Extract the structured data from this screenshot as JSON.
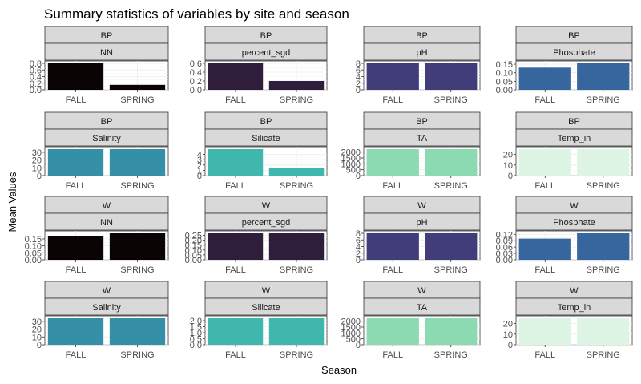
{
  "title": "Summary statistics of variables by site and season",
  "xlabel": "Season",
  "ylabel": "Mean Values",
  "chart_data": {
    "type": "bar",
    "title": "Summary statistics of variables by site and season",
    "xlabel": "Season",
    "ylabel": "Mean Values",
    "grid": true,
    "facet_rows": 4,
    "facet_cols": 4,
    "categories": [
      "FALL",
      "SPRING"
    ],
    "panels": [
      {
        "site": "BP",
        "variable": "NN",
        "values": [
          0.8,
          0.15
        ],
        "yticks": [
          0.0,
          0.2,
          0.4,
          0.6,
          0.8
        ],
        "tick_labels": [
          "0.0",
          "0.2",
          "0.4",
          "0.6",
          "0.8"
        ],
        "ylim": [
          0,
          0.8
        ],
        "color": "#0b0405"
      },
      {
        "site": "BP",
        "variable": "percent_sgd",
        "values": [
          0.6,
          0.2
        ],
        "yticks": [
          0.0,
          0.2,
          0.4,
          0.6
        ],
        "tick_labels": [
          "0.0",
          "0.2",
          "0.4",
          "0.6"
        ],
        "ylim": [
          0,
          0.6
        ],
        "color": "#2e1e3c"
      },
      {
        "site": "BP",
        "variable": "pH",
        "values": [
          8.0,
          8.0
        ],
        "yticks": [
          0,
          2,
          4,
          6,
          8
        ],
        "tick_labels": [
          "0",
          "2",
          "4",
          "6",
          "8"
        ],
        "ylim": [
          0,
          8
        ],
        "color": "#413d7b"
      },
      {
        "site": "BP",
        "variable": "Phosphate",
        "values": [
          0.13,
          0.155
        ],
        "yticks": [
          0.0,
          0.05,
          0.1,
          0.15
        ],
        "tick_labels": [
          "0.00",
          "0.05",
          "0.10",
          "0.15"
        ],
        "ylim": [
          0,
          0.155
        ],
        "color": "#37659e"
      },
      {
        "site": "BP",
        "variable": "Salinity",
        "values": [
          34,
          34
        ],
        "yticks": [
          0,
          10,
          20,
          30
        ],
        "tick_labels": [
          "0",
          "10",
          "20",
          "30"
        ],
        "ylim": [
          0,
          34
        ],
        "color": "#348fa7"
      },
      {
        "site": "BP",
        "variable": "Silicate",
        "values": [
          5.0,
          1.5
        ],
        "yticks": [
          0,
          1,
          2,
          3,
          4
        ],
        "tick_labels": [
          "0",
          "1",
          "2",
          "3",
          "4"
        ],
        "ylim": [
          0,
          5.0
        ],
        "color": "#40b7ad"
      },
      {
        "site": "BP",
        "variable": "TA",
        "values": [
          2250,
          2250
        ],
        "yticks": [
          0,
          500,
          1000,
          1500,
          2000
        ],
        "tick_labels": [
          "0",
          "500",
          "1000",
          "1500",
          "2000"
        ],
        "ylim": [
          0,
          2250
        ],
        "color": "#8bdab2"
      },
      {
        "site": "BP",
        "variable": "Temp_in",
        "values": [
          25,
          25
        ],
        "yticks": [
          0,
          10,
          20
        ],
        "tick_labels": [
          "0",
          "10",
          "20"
        ],
        "ylim": [
          0,
          25
        ],
        "color": "#def5e5"
      },
      {
        "site": "W",
        "variable": "NN",
        "values": [
          0.17,
          0.19
        ],
        "yticks": [
          0.0,
          0.05,
          0.1,
          0.15
        ],
        "tick_labels": [
          "0.00",
          "0.05",
          "0.10",
          "0.15"
        ],
        "ylim": [
          0,
          0.19
        ],
        "color": "#0b0405"
      },
      {
        "site": "W",
        "variable": "percent_sgd",
        "values": [
          0.27,
          0.27
        ],
        "yticks": [
          0.0,
          0.05,
          0.1,
          0.15,
          0.2,
          0.25
        ],
        "tick_labels": [
          "0.00",
          "0.05",
          "0.10",
          "0.15",
          "0.20",
          "0.25"
        ],
        "ylim": [
          0,
          0.27
        ],
        "color": "#2e1e3c"
      },
      {
        "site": "W",
        "variable": "pH",
        "values": [
          8.0,
          8.0
        ],
        "yticks": [
          0,
          2,
          4,
          6,
          8
        ],
        "tick_labels": [
          "0",
          "2",
          "4",
          "6",
          "8"
        ],
        "ylim": [
          0,
          8
        ],
        "color": "#413d7b"
      },
      {
        "site": "W",
        "variable": "Phosphate",
        "values": [
          0.1,
          0.125
        ],
        "yticks": [
          0.0,
          0.03,
          0.06,
          0.09,
          0.12
        ],
        "tick_labels": [
          "0.00",
          "0.03",
          "0.06",
          "0.09",
          "0.12"
        ],
        "ylim": [
          0,
          0.125
        ],
        "color": "#37659e"
      },
      {
        "site": "W",
        "variable": "Salinity",
        "values": [
          34,
          34
        ],
        "yticks": [
          0,
          10,
          20,
          30
        ],
        "tick_labels": [
          "0",
          "10",
          "20",
          "30"
        ],
        "ylim": [
          0,
          34
        ],
        "color": "#348fa7"
      },
      {
        "site": "W",
        "variable": "Silicate",
        "values": [
          2.2,
          2.2
        ],
        "yticks": [
          0.0,
          0.5,
          1.0,
          1.5,
          2.0
        ],
        "tick_labels": [
          "0.0",
          "0.5",
          "1.0",
          "1.5",
          "2.0"
        ],
        "ylim": [
          0,
          2.2
        ],
        "color": "#40b7ad"
      },
      {
        "site": "W",
        "variable": "TA",
        "values": [
          2250,
          2250
        ],
        "yticks": [
          0,
          500,
          1000,
          1500,
          2000
        ],
        "tick_labels": [
          "0",
          "500",
          "1000",
          "1500",
          "2000"
        ],
        "ylim": [
          0,
          2250
        ],
        "color": "#8bdab2"
      },
      {
        "site": "W",
        "variable": "Temp_in",
        "values": [
          25,
          25
        ],
        "yticks": [
          0,
          10,
          20
        ],
        "tick_labels": [
          "0",
          "10",
          "20"
        ],
        "ylim": [
          0,
          25
        ],
        "color": "#def5e5"
      }
    ]
  }
}
